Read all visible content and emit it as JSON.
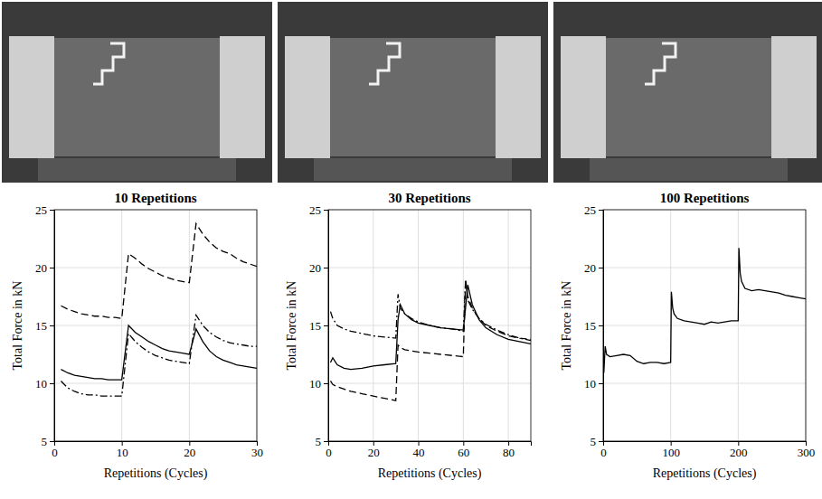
{
  "chart_data": [
    {
      "type": "line",
      "title": "10 Repetitions",
      "x_label": "Repetitions (Cycles)",
      "y_label": "Total Force in kN",
      "x": [
        1,
        2,
        3,
        4,
        5,
        6,
        7,
        8,
        9,
        10,
        11,
        12,
        13,
        14,
        15,
        16,
        17,
        18,
        19,
        20,
        21,
        22,
        23,
        24,
        25,
        26,
        27,
        28,
        29,
        30
      ],
      "xlim": [
        0,
        30
      ],
      "xticks": [
        0,
        10,
        20,
        30
      ],
      "ylim": [
        5,
        25
      ],
      "yticks": [
        5,
        10,
        15,
        20,
        25
      ],
      "grid": true,
      "series": [
        {
          "color": "#000000",
          "line_style": "dashed",
          "values": [
            16.7,
            16.4,
            16.2,
            16.0,
            15.9,
            15.8,
            15.8,
            15.7,
            15.7,
            15.6,
            21.2,
            20.8,
            20.3,
            19.9,
            19.6,
            19.3,
            19.1,
            18.9,
            18.8,
            18.7,
            23.8,
            22.9,
            22.2,
            21.7,
            21.4,
            21.2,
            20.8,
            20.5,
            20.3,
            20.1
          ]
        },
        {
          "color": "#000000",
          "line_style": "solid",
          "values": [
            11.2,
            10.9,
            10.7,
            10.6,
            10.5,
            10.4,
            10.4,
            10.3,
            10.3,
            10.3,
            15.0,
            14.4,
            14.0,
            13.6,
            13.3,
            13.0,
            12.8,
            12.7,
            12.6,
            12.5,
            14.7,
            13.6,
            12.8,
            12.3,
            12.0,
            11.8,
            11.6,
            11.5,
            11.4,
            11.3
          ]
        },
        {
          "color": "#000000",
          "line_style": "dashdot",
          "values": [
            10.2,
            9.6,
            9.3,
            9.1,
            9.0,
            9.0,
            8.9,
            8.9,
            8.9,
            8.9,
            14.3,
            13.6,
            13.1,
            12.7,
            12.4,
            12.2,
            12.0,
            11.9,
            11.8,
            11.7,
            15.9,
            15.0,
            14.4,
            14.0,
            13.7,
            13.5,
            13.4,
            13.3,
            13.2,
            13.2
          ]
        }
      ]
    },
    {
      "type": "line",
      "title": "30 Repetitions",
      "x_label": "Repetitions (Cycles)",
      "y_label": "Total Force in kN",
      "x": [
        1,
        2,
        4,
        7,
        10,
        15,
        20,
        25,
        30,
        31,
        32,
        34,
        37,
        40,
        45,
        50,
        55,
        60,
        61,
        62,
        64,
        67,
        70,
        75,
        80,
        85,
        90
      ],
      "xlim": [
        0,
        90
      ],
      "xticks": [
        0,
        20,
        40,
        60,
        80
      ],
      "ylim": [
        5,
        25
      ],
      "yticks": [
        5,
        10,
        15,
        20,
        25
      ],
      "grid": true,
      "series": [
        {
          "color": "#000000",
          "line_style": "dashdot",
          "values": [
            16.2,
            15.6,
            15.0,
            14.7,
            14.5,
            14.3,
            14.1,
            14.0,
            13.9,
            17.7,
            16.5,
            16.0,
            15.6,
            15.3,
            15.0,
            14.8,
            14.7,
            14.5,
            18.9,
            17.2,
            16.4,
            15.6,
            15.1,
            14.6,
            14.2,
            13.9,
            13.7
          ]
        },
        {
          "color": "#000000",
          "line_style": "solid",
          "values": [
            11.8,
            12.2,
            11.6,
            11.3,
            11.2,
            11.3,
            11.5,
            11.6,
            11.7,
            15.5,
            16.8,
            16.0,
            15.5,
            15.2,
            15.0,
            14.8,
            14.7,
            14.6,
            16.5,
            18.5,
            16.8,
            15.5,
            14.8,
            14.2,
            13.8,
            13.6,
            13.4
          ]
        },
        {
          "color": "#000000",
          "line_style": "dashed",
          "values": [
            10.2,
            9.9,
            9.7,
            9.5,
            9.3,
            9.1,
            8.9,
            8.7,
            8.5,
            13.3,
            13.1,
            12.9,
            12.8,
            12.7,
            12.6,
            12.5,
            12.4,
            12.3,
            19.0,
            17.5,
            16.5,
            15.6,
            15.0,
            14.5,
            14.1,
            13.9,
            13.8
          ]
        }
      ]
    },
    {
      "type": "line",
      "title": "100 Repetitions",
      "x_label": "Repetitions (Cycles)",
      "y_label": "Total Force in kN",
      "x": [
        1,
        3,
        5,
        10,
        20,
        30,
        40,
        50,
        60,
        70,
        80,
        90,
        100,
        101,
        103,
        105,
        110,
        120,
        130,
        140,
        150,
        160,
        170,
        180,
        190,
        200,
        201,
        203,
        205,
        210,
        220,
        230,
        240,
        250,
        260,
        270,
        280,
        290,
        300
      ],
      "xlim": [
        0,
        300
      ],
      "xticks": [
        0,
        100,
        200,
        300
      ],
      "ylim": [
        5,
        25
      ],
      "yticks": [
        5,
        10,
        15,
        20,
        25
      ],
      "grid": true,
      "series": [
        {
          "color": "#000000",
          "line_style": "solid",
          "values": [
            10.9,
            13.2,
            12.5,
            12.3,
            12.4,
            12.5,
            12.4,
            11.9,
            11.7,
            11.8,
            11.8,
            11.7,
            11.8,
            17.9,
            16.5,
            16.0,
            15.6,
            15.4,
            15.3,
            15.2,
            15.1,
            15.3,
            15.2,
            15.3,
            15.4,
            15.4,
            21.7,
            19.5,
            18.8,
            18.2,
            18.0,
            18.1,
            18.0,
            17.9,
            17.8,
            17.6,
            17.5,
            17.4,
            17.3
          ]
        }
      ]
    }
  ]
}
